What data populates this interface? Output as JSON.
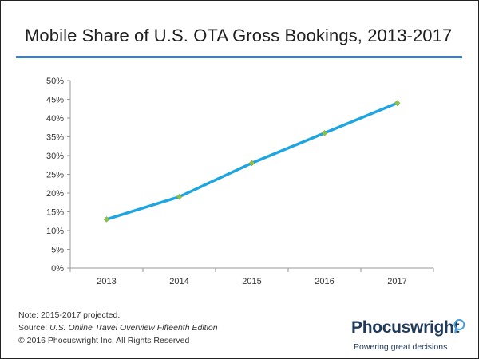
{
  "title": "Mobile Share of U.S. OTA Gross Bookings, 2013-2017",
  "chart_data": {
    "type": "line",
    "title": "Mobile Share of U.S. OTA Gross Bookings, 2013-2017",
    "categories": [
      "2013",
      "2014",
      "2015",
      "2016",
      "2017"
    ],
    "series": [
      {
        "name": "Mobile share",
        "values": [
          13,
          19,
          28,
          36,
          44
        ]
      }
    ],
    "ylim": [
      0,
      50
    ],
    "yticks": [
      0,
      5,
      10,
      15,
      20,
      25,
      30,
      35,
      40,
      45,
      50
    ],
    "ytick_labels": [
      "0%",
      "5%",
      "10%",
      "15%",
      "20%",
      "25%",
      "30%",
      "35%",
      "40%",
      "45%",
      "50%"
    ],
    "xlabel": "",
    "ylabel": "",
    "grid": false,
    "line_color": "#1fa6e0",
    "marker_color": "#8bc34a"
  },
  "notes": {
    "note": "Note: 2015-2017 projected.",
    "source_prefix": "Source: ",
    "source_title": "U.S. Online Travel Overview Fifteenth Edition",
    "copyright": "© 2016 Phocuswright Inc. All Rights Reserved"
  },
  "brand": {
    "name": "Phocuswright",
    "tagline": "Powering great decisions."
  },
  "colors": {
    "title_rule": "#3a7fbf",
    "brand": "#1f3a5a"
  }
}
